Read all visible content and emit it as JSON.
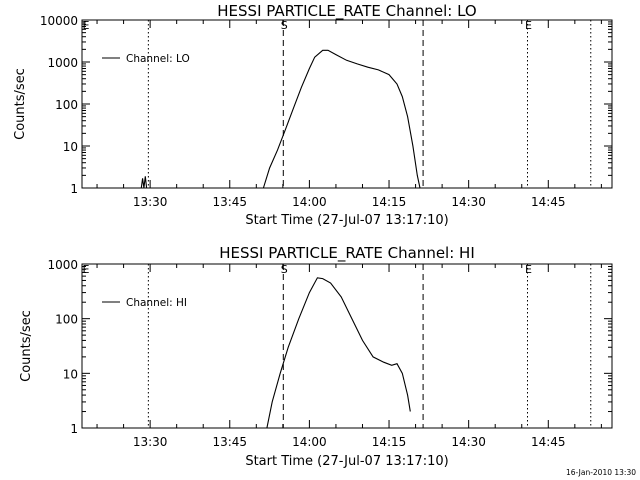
{
  "footer_timestamp": "16-Jan-2010 13:30",
  "chart_data": [
    {
      "type": "line",
      "title": "HESSI PARTICLE_RATE Channel: LO",
      "xlabel": "Start Time (27-Jul-07 13:17:10)",
      "ylabel": "Counts/sec",
      "y_scale": "log",
      "xlim": [
        "13:17:10",
        "14:57:00"
      ],
      "ylim": [
        1,
        10000
      ],
      "x_ticks": [
        "13:30",
        "13:45",
        "14:00",
        "14:15",
        "14:30",
        "14:45"
      ],
      "y_ticks": [
        "1",
        "10",
        "100",
        "1000",
        "10000"
      ],
      "legend": {
        "position": "top-left",
        "entries": [
          "Channel: LO"
        ]
      },
      "markers": [
        {
          "label": "S",
          "time": "13:55:05",
          "style": "dashed"
        },
        {
          "label": "",
          "time": "14:21:25",
          "style": "dashed"
        },
        {
          "label": "",
          "time": "13:29:40",
          "style": "dotted"
        },
        {
          "label": "E",
          "time": "14:41:05",
          "style": "dotted"
        },
        {
          "label": "",
          "time": "14:53:00",
          "style": "dotted"
        }
      ],
      "series": [
        {
          "name": "Channel: LO",
          "segments": [
            [
              [
                "13:28:20",
                1
              ],
              [
                "13:28:35",
                1.7
              ],
              [
                "13:28:50",
                1
              ],
              [
                "13:29:05",
                1.9
              ],
              [
                "13:29:20",
                1
              ]
            ],
            [
              [
                "13:51:20",
                1
              ],
              [
                "13:52:30",
                3
              ],
              [
                "13:54:00",
                8
              ],
              [
                "13:55:30",
                25
              ],
              [
                "13:57:00",
                80
              ],
              [
                "13:58:30",
                250
              ],
              [
                "14:00:00",
                700
              ],
              [
                "14:01:00",
                1300
              ],
              [
                "14:02:30",
                1900
              ],
              [
                "14:03:30",
                1900
              ],
              [
                "14:05:00",
                1500
              ],
              [
                "14:07:00",
                1100
              ],
              [
                "14:09:00",
                900
              ],
              [
                "14:11:00",
                750
              ],
              [
                "14:13:00",
                650
              ],
              [
                "14:15:00",
                500
              ],
              [
                "14:16:30",
                300
              ],
              [
                "14:17:30",
                150
              ],
              [
                "14:18:30",
                50
              ],
              [
                "14:19:30",
                10
              ],
              [
                "14:20:20",
                2
              ],
              [
                "14:20:50",
                1
              ]
            ]
          ]
        }
      ]
    },
    {
      "type": "line",
      "title": "HESSI PARTICLE_RATE Channel: HI",
      "xlabel": "Start Time (27-Jul-07 13:17:10)",
      "ylabel": "Counts/sec",
      "y_scale": "log",
      "xlim": [
        "13:17:10",
        "14:57:00"
      ],
      "ylim": [
        1,
        1000
      ],
      "x_ticks": [
        "13:30",
        "13:45",
        "14:00",
        "14:15",
        "14:30",
        "14:45"
      ],
      "y_ticks": [
        "1",
        "10",
        "100",
        "1000"
      ],
      "legend": {
        "position": "top-left",
        "entries": [
          "Channel: HI"
        ]
      },
      "markers": [
        {
          "label": "S",
          "time": "13:55:05",
          "style": "dashed"
        },
        {
          "label": "",
          "time": "14:21:25",
          "style": "dashed"
        },
        {
          "label": "",
          "time": "13:29:40",
          "style": "dotted"
        },
        {
          "label": "E",
          "time": "14:41:05",
          "style": "dotted"
        },
        {
          "label": "",
          "time": "14:53:00",
          "style": "dotted"
        }
      ],
      "series": [
        {
          "name": "Channel: HI",
          "segments": [
            [
              [
                "13:52:00",
                1
              ],
              [
                "13:53:00",
                3
              ],
              [
                "13:54:30",
                10
              ],
              [
                "13:56:00",
                30
              ],
              [
                "13:58:00",
                100
              ],
              [
                "14:00:00",
                300
              ],
              [
                "14:01:30",
                560
              ],
              [
                "14:02:30",
                540
              ],
              [
                "14:04:00",
                450
              ],
              [
                "14:06:00",
                250
              ],
              [
                "14:08:00",
                100
              ],
              [
                "14:10:00",
                40
              ],
              [
                "14:12:00",
                20
              ],
              [
                "14:14:00",
                16
              ],
              [
                "14:15:30",
                14
              ],
              [
                "14:16:30",
                15
              ],
              [
                "14:17:30",
                10
              ],
              [
                "14:18:30",
                4
              ],
              [
                "14:19:00",
                2
              ]
            ]
          ]
        }
      ]
    }
  ]
}
